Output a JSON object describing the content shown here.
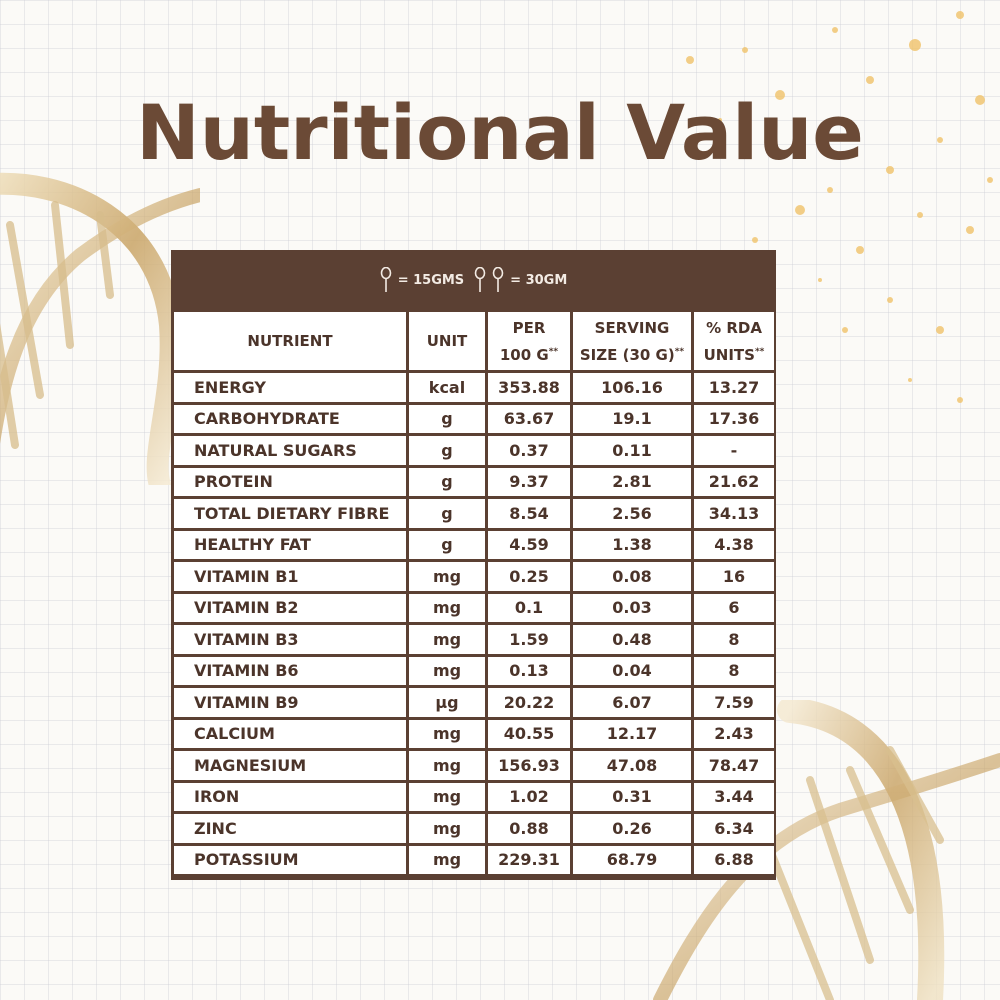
{
  "title": "Nutritional Value",
  "legend": {
    "one_spoon": "= 15GMS",
    "two_spoons": "= 30GM"
  },
  "columns": {
    "nutrient": "NUTRIENT",
    "unit": "UNIT",
    "per_100_line1": "PER",
    "per_100_line2": "100 G",
    "serving_line1": "SERVING",
    "serving_line2": "SIZE (30 G)",
    "rda_line1": "% RDA",
    "rda_line2": "UNITS",
    "footnote_mark": "**"
  },
  "rows": [
    {
      "nutrient": "ENERGY",
      "unit": "kcal",
      "per100": "353.88",
      "serving": "106.16",
      "rda": "13.27"
    },
    {
      "nutrient": "CARBOHYDRATE",
      "unit": "g",
      "per100": "63.67",
      "serving": "19.1",
      "rda": "17.36"
    },
    {
      "nutrient": "NATURAL SUGARS",
      "unit": "g",
      "per100": "0.37",
      "serving": "0.11",
      "rda": "-"
    },
    {
      "nutrient": "PROTEIN",
      "unit": "g",
      "per100": "9.37",
      "serving": "2.81",
      "rda": "21.62"
    },
    {
      "nutrient": "TOTAL DIETARY FIBRE",
      "unit": "g",
      "per100": "8.54",
      "serving": "2.56",
      "rda": "34.13"
    },
    {
      "nutrient": "HEALTHY FAT",
      "unit": "g",
      "per100": "4.59",
      "serving": "1.38",
      "rda": "4.38"
    },
    {
      "nutrient": "VITAMIN B1",
      "unit": "mg",
      "per100": "0.25",
      "serving": "0.08",
      "rda": "16"
    },
    {
      "nutrient": "VITAMIN B2",
      "unit": "mg",
      "per100": "0.1",
      "serving": "0.03",
      "rda": "6"
    },
    {
      "nutrient": "VITAMIN B3",
      "unit": "mg",
      "per100": "1.59",
      "serving": "0.48",
      "rda": "8"
    },
    {
      "nutrient": "VITAMIN B6",
      "unit": "mg",
      "per100": "0.13",
      "serving": "0.04",
      "rda": "8"
    },
    {
      "nutrient": "VITAMIN B9",
      "unit": "µg",
      "per100": "20.22",
      "serving": "6.07",
      "rda": "7.59"
    },
    {
      "nutrient": "CALCIUM",
      "unit": "mg",
      "per100": "40.55",
      "serving": "12.17",
      "rda": "2.43"
    },
    {
      "nutrient": "MAGNESIUM",
      "unit": "mg",
      "per100": "156.93",
      "serving": "47.08",
      "rda": "78.47"
    },
    {
      "nutrient": "IRON",
      "unit": "mg",
      "per100": "1.02",
      "serving": "0.31",
      "rda": "3.44"
    },
    {
      "nutrient": "ZINC",
      "unit": "mg",
      "per100": "0.88",
      "serving": "0.26",
      "rda": "6.34"
    },
    {
      "nutrient": "POTASSIUM",
      "unit": "mg",
      "per100": "229.31",
      "serving": "68.79",
      "rda": "6.88"
    }
  ],
  "colors": {
    "brand_brown": "#6b4a36",
    "table_border": "#5b4033",
    "header_text": "#f3ebe4",
    "cell_text": "#4b342a",
    "gold": "#d9b97a"
  },
  "icons": [
    "spoon-icon",
    "dna-helix-icon",
    "sparkle-icon"
  ]
}
